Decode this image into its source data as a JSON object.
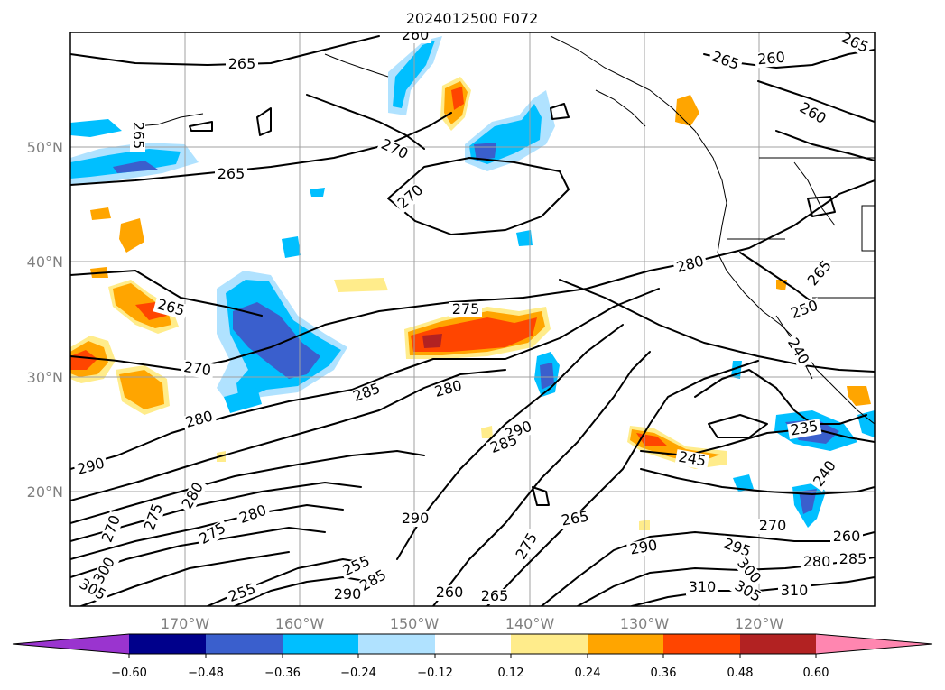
{
  "title": "2024012500 F072",
  "lat_labels": [
    "50°N",
    "40°N",
    "30°N",
    "20°N"
  ],
  "lon_labels": [
    "170°W",
    "160°W",
    "150°W",
    "140°W",
    "130°W",
    "120°W"
  ],
  "colorbar": {
    "ticks": [
      "−0.60",
      "−0.48",
      "−0.36",
      "−0.24",
      "−0.12",
      "0.12",
      "0.24",
      "0.36",
      "0.48",
      "0.60"
    ],
    "colors": [
      "#9a34cf",
      "#00008b",
      "#3a5fcd",
      "#00bfff",
      "#b0e2ff",
      "#ffffff",
      "#ffec8b",
      "#ffa500",
      "#ff4500",
      "#b22222",
      "#ff86b0"
    ]
  },
  "contour_labels": [
    "265",
    "270",
    "270",
    "265",
    "265",
    "260",
    "260",
    "260",
    "265",
    "265",
    "280",
    "265",
    "250",
    "240",
    "275",
    "270",
    "285",
    "280",
    "280",
    "290",
    "290",
    "285",
    "265",
    "245",
    "235",
    "240",
    "270",
    "260",
    "290",
    "295",
    "300",
    "305",
    "310",
    "280",
    "285",
    "310",
    "265",
    "260",
    "275",
    "255",
    "290",
    "285",
    "280",
    "305",
    "300",
    "290",
    "275",
    "270",
    "280",
    "275",
    "255",
    "265"
  ]
}
